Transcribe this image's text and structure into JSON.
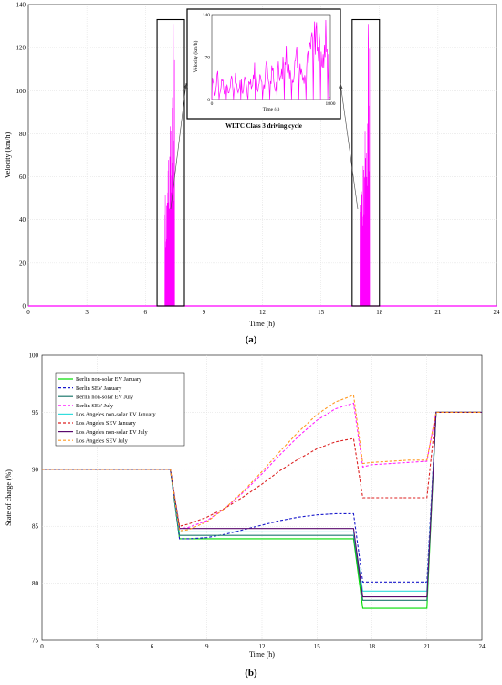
{
  "chart_data": [
    {
      "type": "line",
      "panel_label": "(a)",
      "xlabel": "Time (h)",
      "ylabel": "Velocity (km/h)",
      "xlim": [
        0,
        24
      ],
      "ylim": [
        0,
        140
      ],
      "xticks": [
        0,
        3,
        6,
        9,
        12,
        15,
        18,
        21,
        24
      ],
      "yticks": [
        0,
        20,
        40,
        60,
        80,
        100,
        120,
        140
      ],
      "grid": true,
      "series_color": "#ff00ff",
      "trips": [
        {
          "start_h": 7.0,
          "end_h": 7.5
        },
        {
          "start_h": 17.0,
          "end_h": 17.5
        }
      ],
      "peak_velocity": 131,
      "inset": {
        "caption": "WLTC Class 3 driving cycle",
        "xlabel": "Time (s)",
        "ylabel": "Velocity (km/h)",
        "xticks": [
          0,
          1800
        ],
        "yticks": [
          0,
          70,
          140
        ],
        "xlim": [
          0,
          1800
        ],
        "ylim": [
          0,
          140
        ]
      }
    },
    {
      "type": "line",
      "panel_label": "(b)",
      "xlabel": "Time (h)",
      "ylabel": "State of charge (%)",
      "xlim": [
        0,
        24
      ],
      "ylim": [
        75,
        100
      ],
      "xticks": [
        0,
        3,
        6,
        9,
        12,
        15,
        18,
        21,
        24
      ],
      "yticks": [
        75,
        80,
        85,
        90,
        95,
        100
      ],
      "grid": true,
      "legend_position": "top-left",
      "x": [
        0,
        7,
        7.5,
        8,
        9,
        10,
        11,
        12,
        13,
        14,
        15,
        16,
        17,
        17.5,
        18,
        19,
        20,
        21,
        21.5,
        24
      ],
      "series": [
        {
          "name": "Berlin non-solar EV January",
          "color": "#00dd00",
          "dash": "solid",
          "values": [
            90,
            90,
            83.9,
            83.9,
            83.9,
            83.9,
            83.9,
            83.9,
            83.9,
            83.9,
            83.9,
            83.9,
            83.9,
            77.8,
            77.8,
            77.8,
            77.8,
            77.8,
            95,
            95
          ]
        },
        {
          "name": "Berlin SEV January",
          "color": "#1a1acc",
          "dash": "dashed",
          "values": [
            90,
            90,
            83.9,
            83.9,
            84.0,
            84.3,
            84.7,
            85.1,
            85.5,
            85.8,
            86.0,
            86.1,
            86.1,
            80.1,
            80.1,
            80.1,
            80.1,
            80.1,
            95,
            95
          ]
        },
        {
          "name": "Berlin non-solar EV July",
          "color": "#1f7a6e",
          "dash": "solid",
          "values": [
            90,
            90,
            84.2,
            84.2,
            84.2,
            84.2,
            84.2,
            84.2,
            84.2,
            84.2,
            84.2,
            84.2,
            84.2,
            78.5,
            78.5,
            78.5,
            78.5,
            78.5,
            95,
            95
          ]
        },
        {
          "name": "Berlin SEV July",
          "color": "#ff22ff",
          "dash": "dashed",
          "values": [
            90,
            90,
            84.8,
            84.9,
            85.5,
            86.6,
            88.0,
            89.6,
            91.3,
            92.9,
            94.3,
            95.3,
            95.8,
            90.2,
            90.4,
            90.5,
            90.6,
            90.7,
            95,
            95
          ]
        },
        {
          "name": "Los Angeles non-solar EV January",
          "color": "#33dddd",
          "dash": "solid",
          "values": [
            90,
            90,
            84.5,
            84.5,
            84.5,
            84.5,
            84.5,
            84.5,
            84.5,
            84.5,
            84.5,
            84.5,
            84.5,
            79.3,
            79.3,
            79.3,
            79.3,
            79.3,
            95,
            95
          ]
        },
        {
          "name": "Los Angeles SEV January",
          "color": "#dd2222",
          "dash": "dashed",
          "values": [
            90,
            90,
            85.0,
            85.2,
            85.8,
            86.6,
            87.6,
            88.7,
            89.9,
            90.9,
            91.8,
            92.4,
            92.7,
            87.5,
            87.5,
            87.5,
            87.5,
            87.5,
            95,
            95
          ]
        },
        {
          "name": "Los Angeles non-solar EV July",
          "color": "#5a0a6e",
          "dash": "solid",
          "values": [
            90,
            90,
            84.8,
            84.8,
            84.8,
            84.8,
            84.8,
            84.8,
            84.8,
            84.8,
            84.8,
            84.8,
            84.8,
            78.8,
            78.8,
            78.8,
            78.8,
            78.8,
            95,
            95
          ]
        },
        {
          "name": "Los Angeles SEV July",
          "color": "#ff9922",
          "dash": "dashed",
          "values": [
            90,
            90,
            84.6,
            84.7,
            85.4,
            86.6,
            88.1,
            89.8,
            91.6,
            93.3,
            94.8,
            95.9,
            96.5,
            90.5,
            90.6,
            90.7,
            90.8,
            90.8,
            95,
            95
          ]
        }
      ]
    }
  ]
}
